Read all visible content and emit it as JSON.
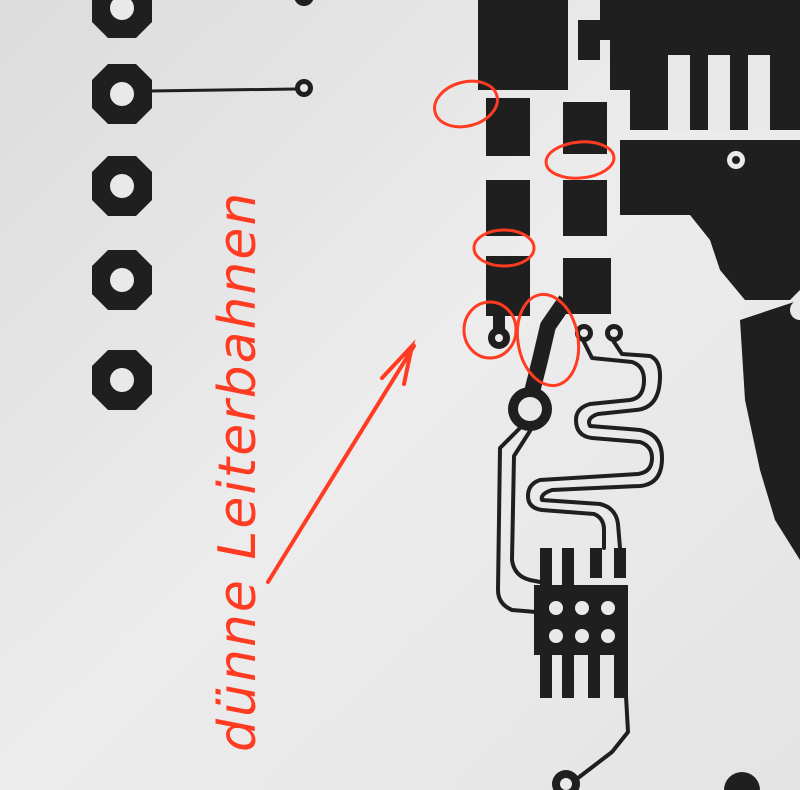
{
  "photo": {
    "annotation_text": "dünne Leiterbahnen",
    "colors": {
      "paper": "#e9e9ea",
      "trace": "#1f1f1f",
      "ink": "#ff3b22"
    }
  }
}
